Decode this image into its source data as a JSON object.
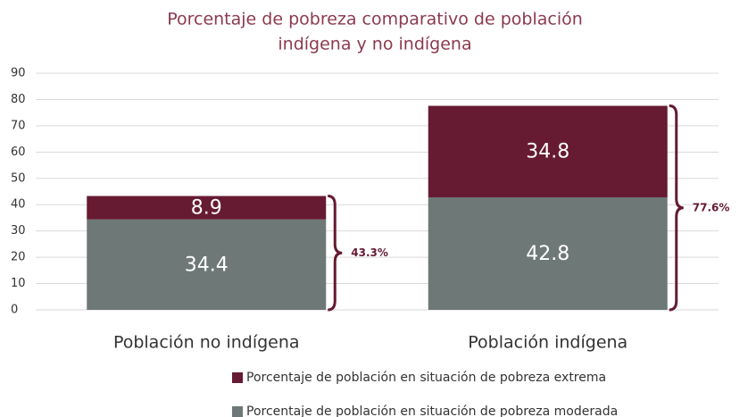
{
  "chart_data": {
    "type": "stacked_bar",
    "title": [
      "Porcentaje de pobreza comparativo de población",
      "indígena y no indígena"
    ],
    "categories": [
      "Población no indígena",
      "Población indígena"
    ],
    "series": [
      {
        "name": "Porcentaje de población en situación de pobreza moderada",
        "color": "#6e7977",
        "values": [
          34.4,
          42.8
        ]
      },
      {
        "name": "Porcentaje de población en situación de pobreza extrema",
        "color": "#661b33",
        "values": [
          8.9,
          34.8
        ]
      }
    ],
    "totals": [
      43.3,
      77.6
    ],
    "total_labels": [
      "43.3%",
      "77.6%"
    ],
    "ylim": [
      0,
      90
    ],
    "yticks": [
      0,
      10,
      20,
      30,
      40,
      50,
      60,
      70,
      80,
      90
    ],
    "grid": true
  }
}
